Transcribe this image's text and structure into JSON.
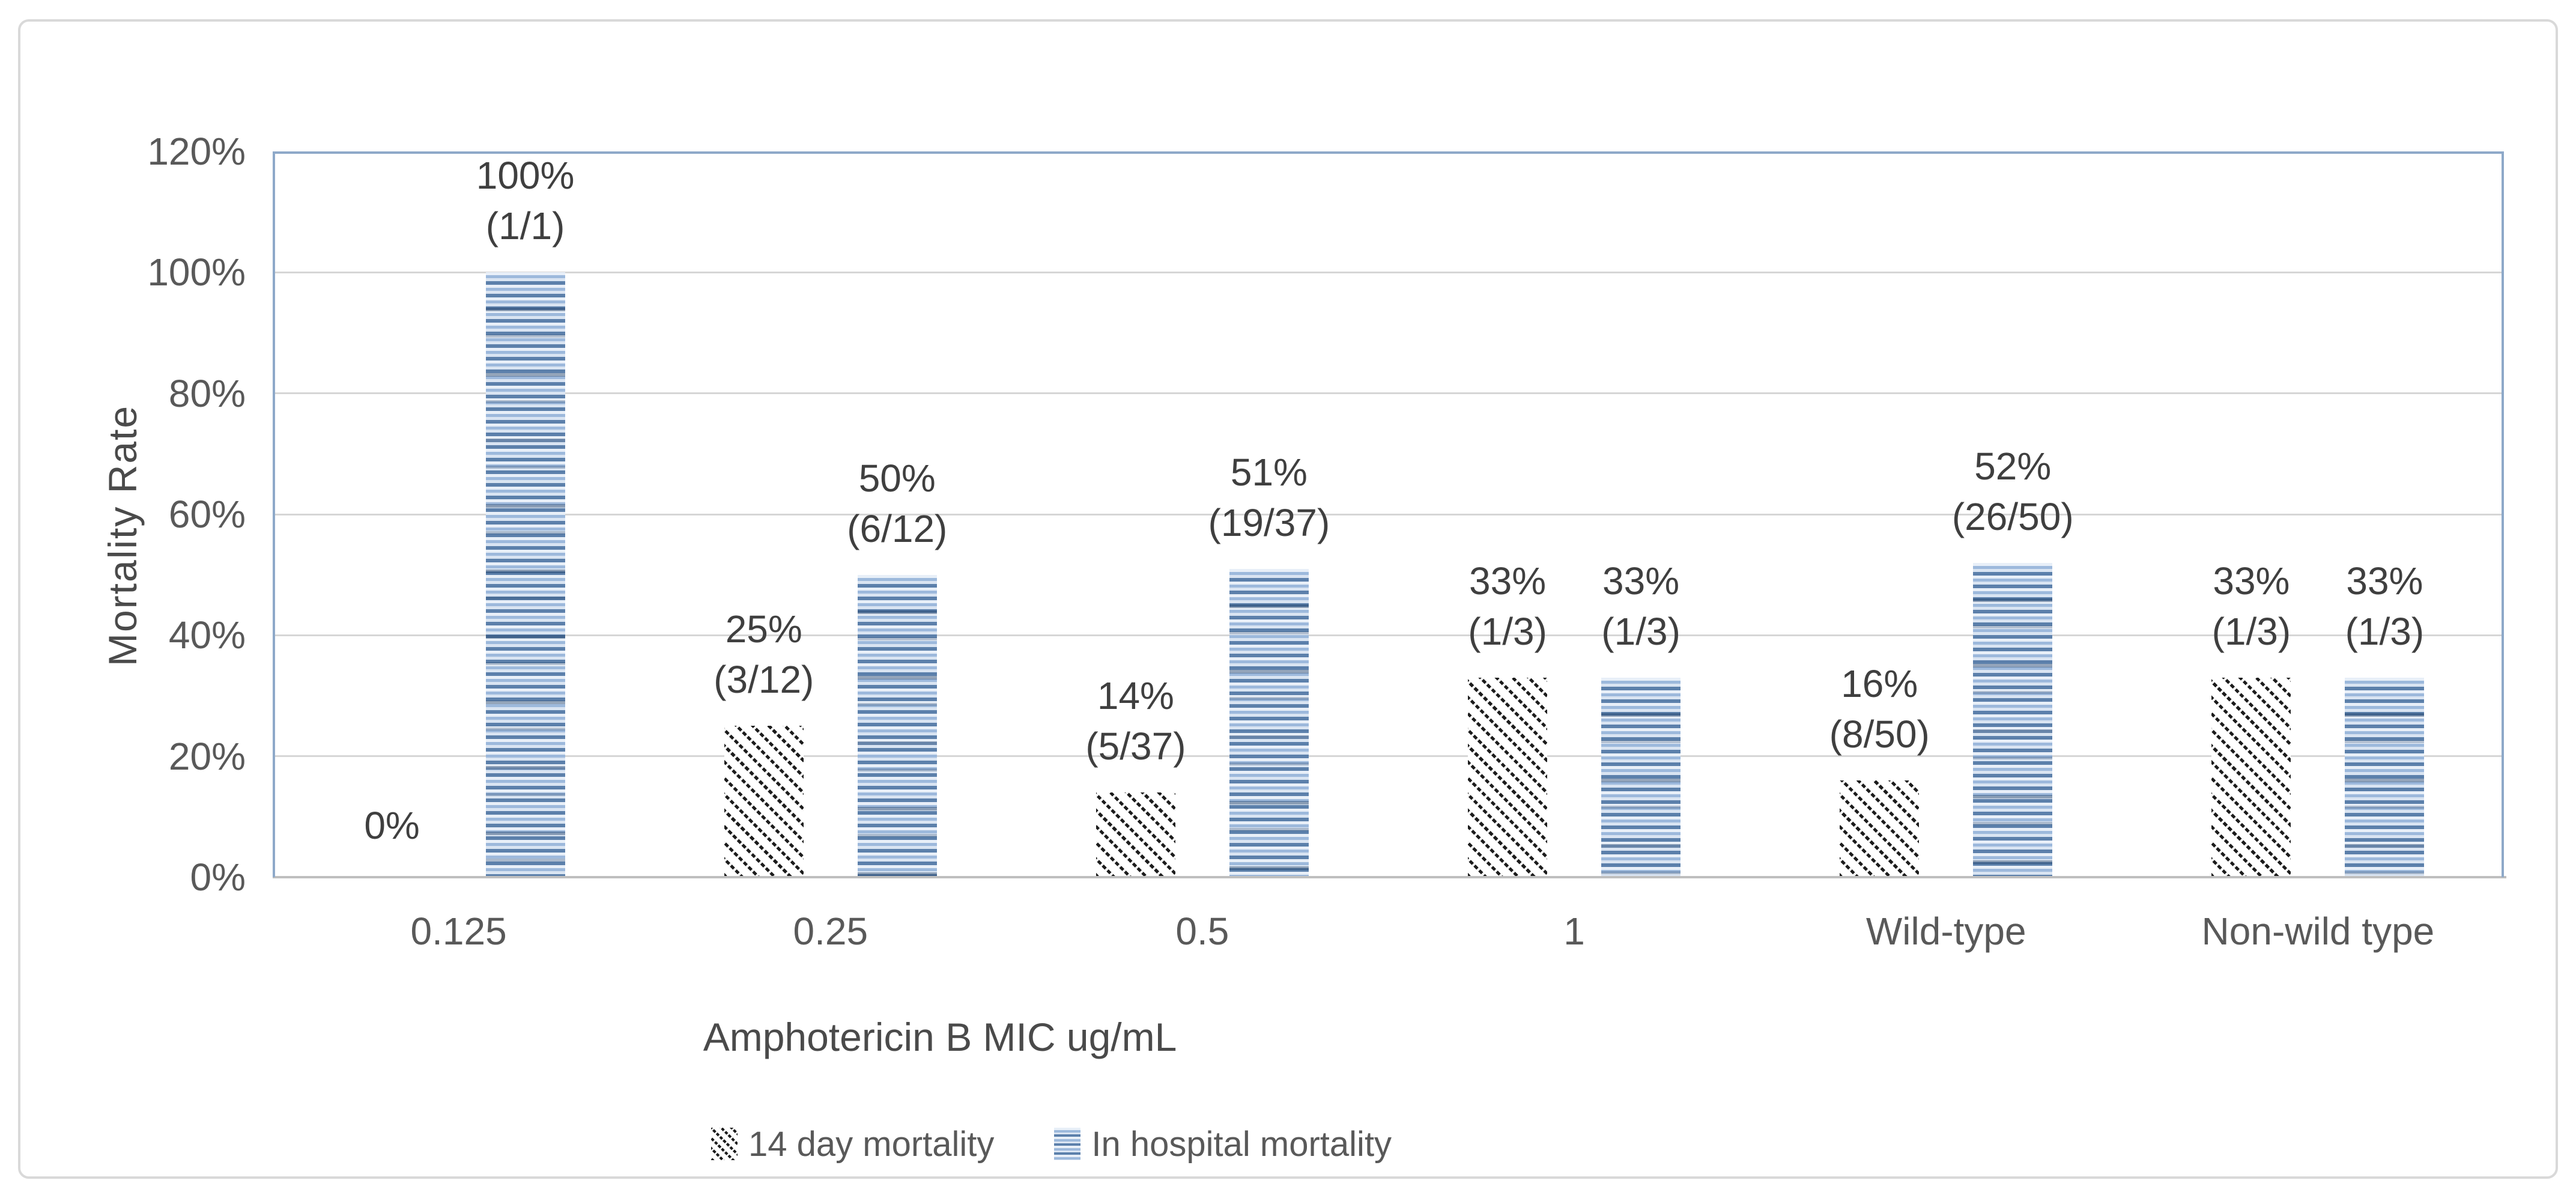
{
  "figure": {
    "background": "#ffffff",
    "border_color": "#d9d9d9"
  },
  "chart_data": {
    "type": "bar",
    "title": "",
    "xlabel": "Amphotericin B MIC ug/mL",
    "ylabel": "Mortality Rate",
    "categories": [
      "0.125",
      "0.25",
      "0.5",
      "1",
      "Wild-type",
      "Non-wild type"
    ],
    "series": [
      {
        "name": "14 day mortality",
        "pattern": "black-diagonal-hatch",
        "values": [
          0,
          25,
          14,
          33,
          16,
          33
        ],
        "labels": [
          {
            "line1": "0%",
            "line2": ""
          },
          {
            "line1": "25%",
            "line2": "(3/12)"
          },
          {
            "line1": "14%",
            "line2": "(5/37)"
          },
          {
            "line1": "33%",
            "line2": "(1/3)"
          },
          {
            "line1": "16%",
            "line2": "(8/50)"
          },
          {
            "line1": "33%",
            "line2": "(1/3)"
          }
        ]
      },
      {
        "name": "In hospital mortality",
        "pattern": "blue-horizontal-stripes",
        "values": [
          100,
          50,
          51,
          33,
          52,
          33
        ],
        "labels": [
          {
            "line1": "100%",
            "line2": "(1/1)"
          },
          {
            "line1": "50%",
            "line2": "(6/12)"
          },
          {
            "line1": "51%",
            "line2": "(19/37)"
          },
          {
            "line1": "33%",
            "line2": "(1/3)"
          },
          {
            "line1": "52%",
            "line2": "(26/50)"
          },
          {
            "line1": "33%",
            "line2": "(1/3)"
          }
        ]
      }
    ],
    "y_axis": {
      "min": 0,
      "max": 120,
      "tick_step": 20,
      "tick_labels": [
        "0%",
        "20%",
        "40%",
        "60%",
        "80%",
        "100%",
        "120%"
      ]
    },
    "grid": true,
    "legend_position": "bottom"
  },
  "colors": {
    "tick_text": "#595959",
    "data_label_text": "#3f3f3f",
    "axis_title_text": "#4a4a4a",
    "gridline": "#d6d6d6",
    "axis_line": "#bfbfbf",
    "plot_border": "#8ea9c9",
    "hatch_dark": "#1c1c1c",
    "stripe_light": "#e8eff8",
    "stripe_medium": "#9db9dc",
    "stripe_dark": "#5c80ab"
  }
}
